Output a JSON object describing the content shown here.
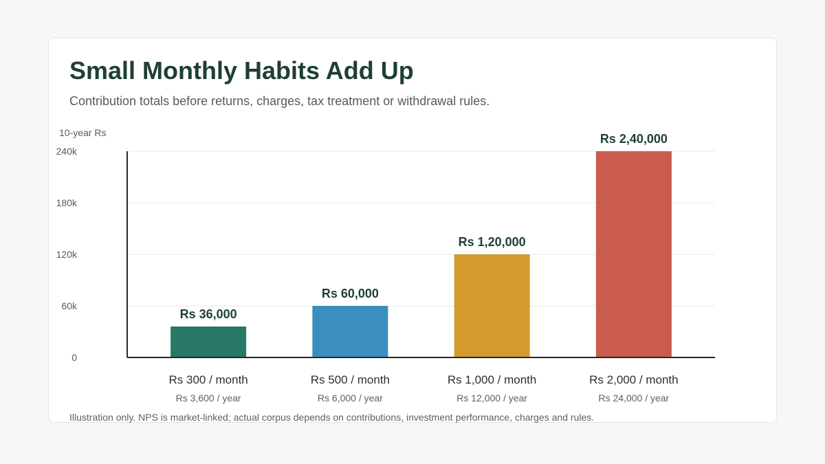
{
  "title": "Small Monthly Habits Add Up",
  "subtitle": "Contribution totals before returns, charges, tax treatment or withdrawal rules.",
  "footnote": "Illustration only. NPS is market-linked; actual corpus depends on contributions, investment performance, charges and rules.",
  "chart_data": {
    "type": "bar",
    "title": "Small Monthly Habits Add Up",
    "ylabel": "10-year Rs",
    "xlabel": "",
    "ylim": [
      0,
      240000
    ],
    "yticks": [
      0,
      60000,
      120000,
      180000,
      240000
    ],
    "ytick_labels": [
      "0",
      "60k",
      "120k",
      "180k",
      "240k"
    ],
    "grid": true,
    "categories": [
      "Rs 300 / month",
      "Rs 500 / month",
      "Rs 1,000 / month",
      "Rs 2,000 / month"
    ],
    "sublabels": [
      "Rs 3,600 / year",
      "Rs 6,000 / year",
      "Rs 12,000 / year",
      "Rs 24,000 / year"
    ],
    "values": [
      36000,
      60000,
      120000,
      240000
    ],
    "data_labels": [
      "Rs 36,000",
      "Rs 60,000",
      "Rs 1,20,000",
      "Rs 2,40,000"
    ],
    "colors": [
      "#277864",
      "#3b8fbe",
      "#d49a2c",
      "#c95b4f"
    ]
  }
}
